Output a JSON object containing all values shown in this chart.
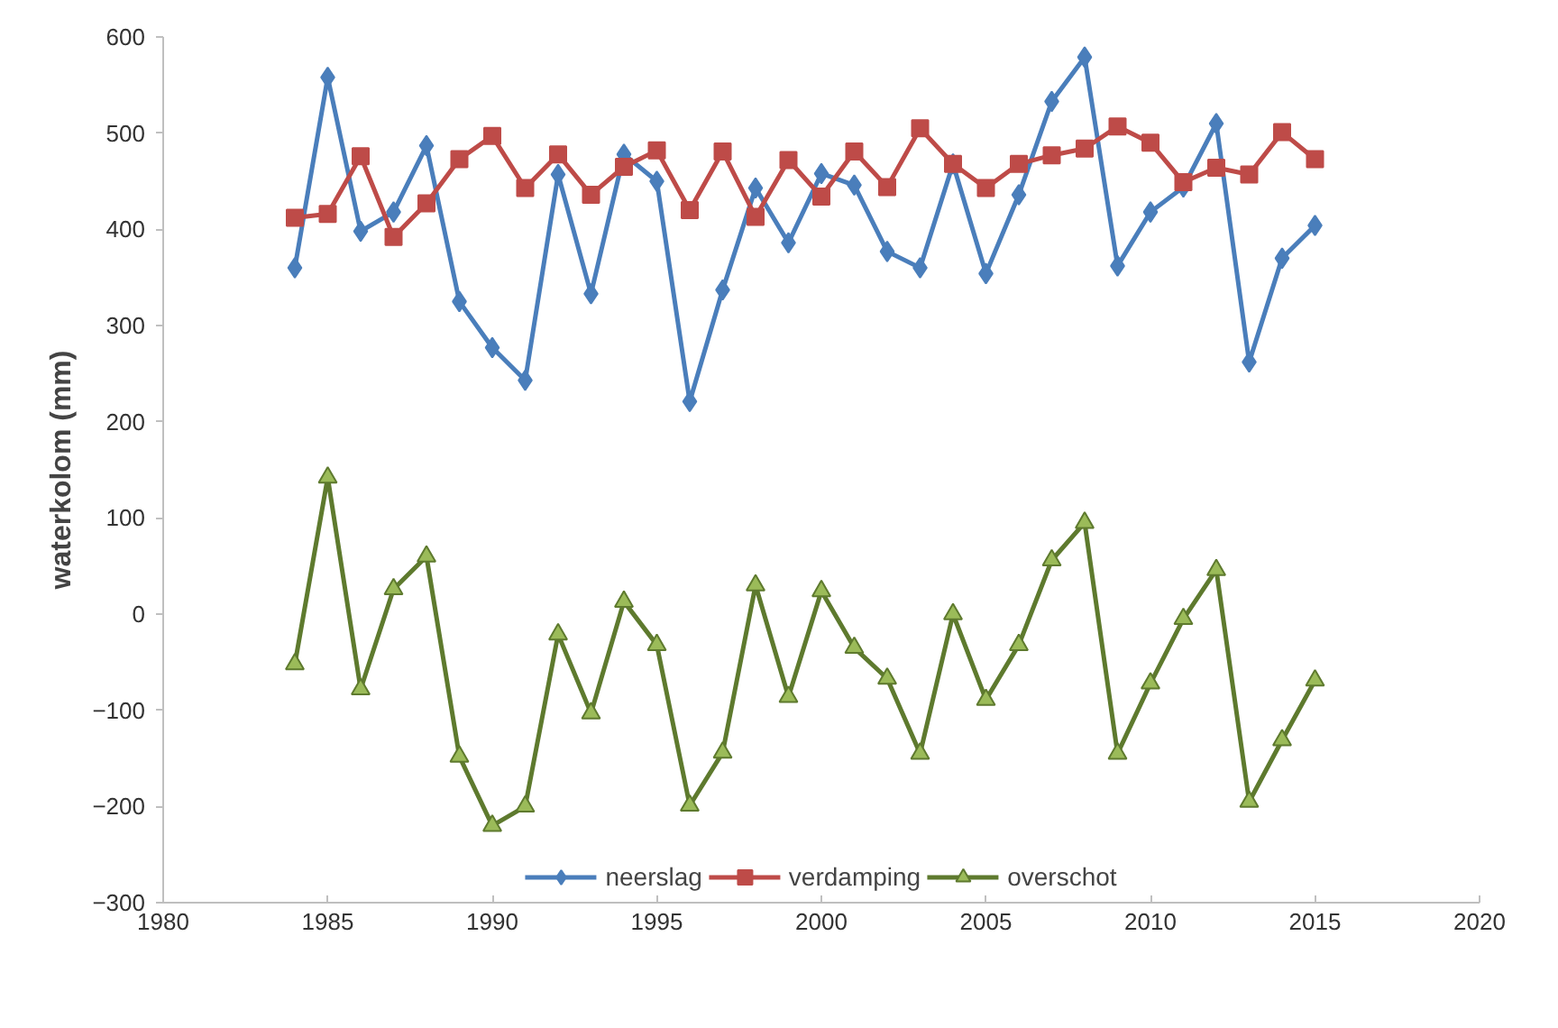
{
  "chart_data": {
    "type": "line",
    "ylabel": "waterkolom (mm)",
    "x": [
      1984,
      1985,
      1986,
      1987,
      1988,
      1989,
      1990,
      1991,
      1992,
      1993,
      1994,
      1995,
      1996,
      1997,
      1998,
      1999,
      2000,
      2001,
      2002,
      2003,
      2004,
      2005,
      2006,
      2007,
      2008,
      2009,
      2010,
      2011,
      2012,
      2013,
      2014,
      2015
    ],
    "xlim": [
      1980,
      2020
    ],
    "xticks": [
      1980,
      1985,
      1990,
      1995,
      2000,
      2005,
      2010,
      2015,
      2020
    ],
    "ylim": [
      -300,
      600
    ],
    "yticks": [
      -300,
      -200,
      -100,
      0,
      100,
      200,
      300,
      400,
      500,
      600
    ],
    "grid": false,
    "legend": "bottom",
    "series": [
      {
        "name": "neerslag",
        "color": "#4a7ebb",
        "marker": "diamond",
        "values": [
          360,
          558,
          398,
          418,
          487,
          325,
          277,
          243,
          457,
          333,
          478,
          450,
          221,
          337,
          443,
          386,
          458,
          446,
          377,
          360,
          468,
          354,
          436,
          533,
          579,
          362,
          418,
          444,
          510,
          262,
          370,
          404
        ]
      },
      {
        "name": "verdamping",
        "color": "#be4b48",
        "marker": "square",
        "values": [
          412,
          416,
          476,
          392,
          427,
          473,
          497,
          443,
          478,
          436,
          465,
          482,
          420,
          481,
          413,
          472,
          434,
          481,
          444,
          505,
          468,
          443,
          468,
          477,
          484,
          507,
          490,
          449,
          464,
          457,
          501,
          473
        ]
      },
      {
        "name": "overschot",
        "color": "#5e7a2e",
        "marker": "triangle",
        "values": [
          -52,
          142,
          -78,
          26,
          60,
          -148,
          -220,
          -200,
          -21,
          -103,
          13,
          -32,
          -199,
          -144,
          30,
          -86,
          24,
          -35,
          -67,
          -145,
          0,
          -89,
          -32,
          56,
          95,
          -145,
          -72,
          -5,
          46,
          -195,
          -131,
          -69
        ]
      }
    ]
  }
}
